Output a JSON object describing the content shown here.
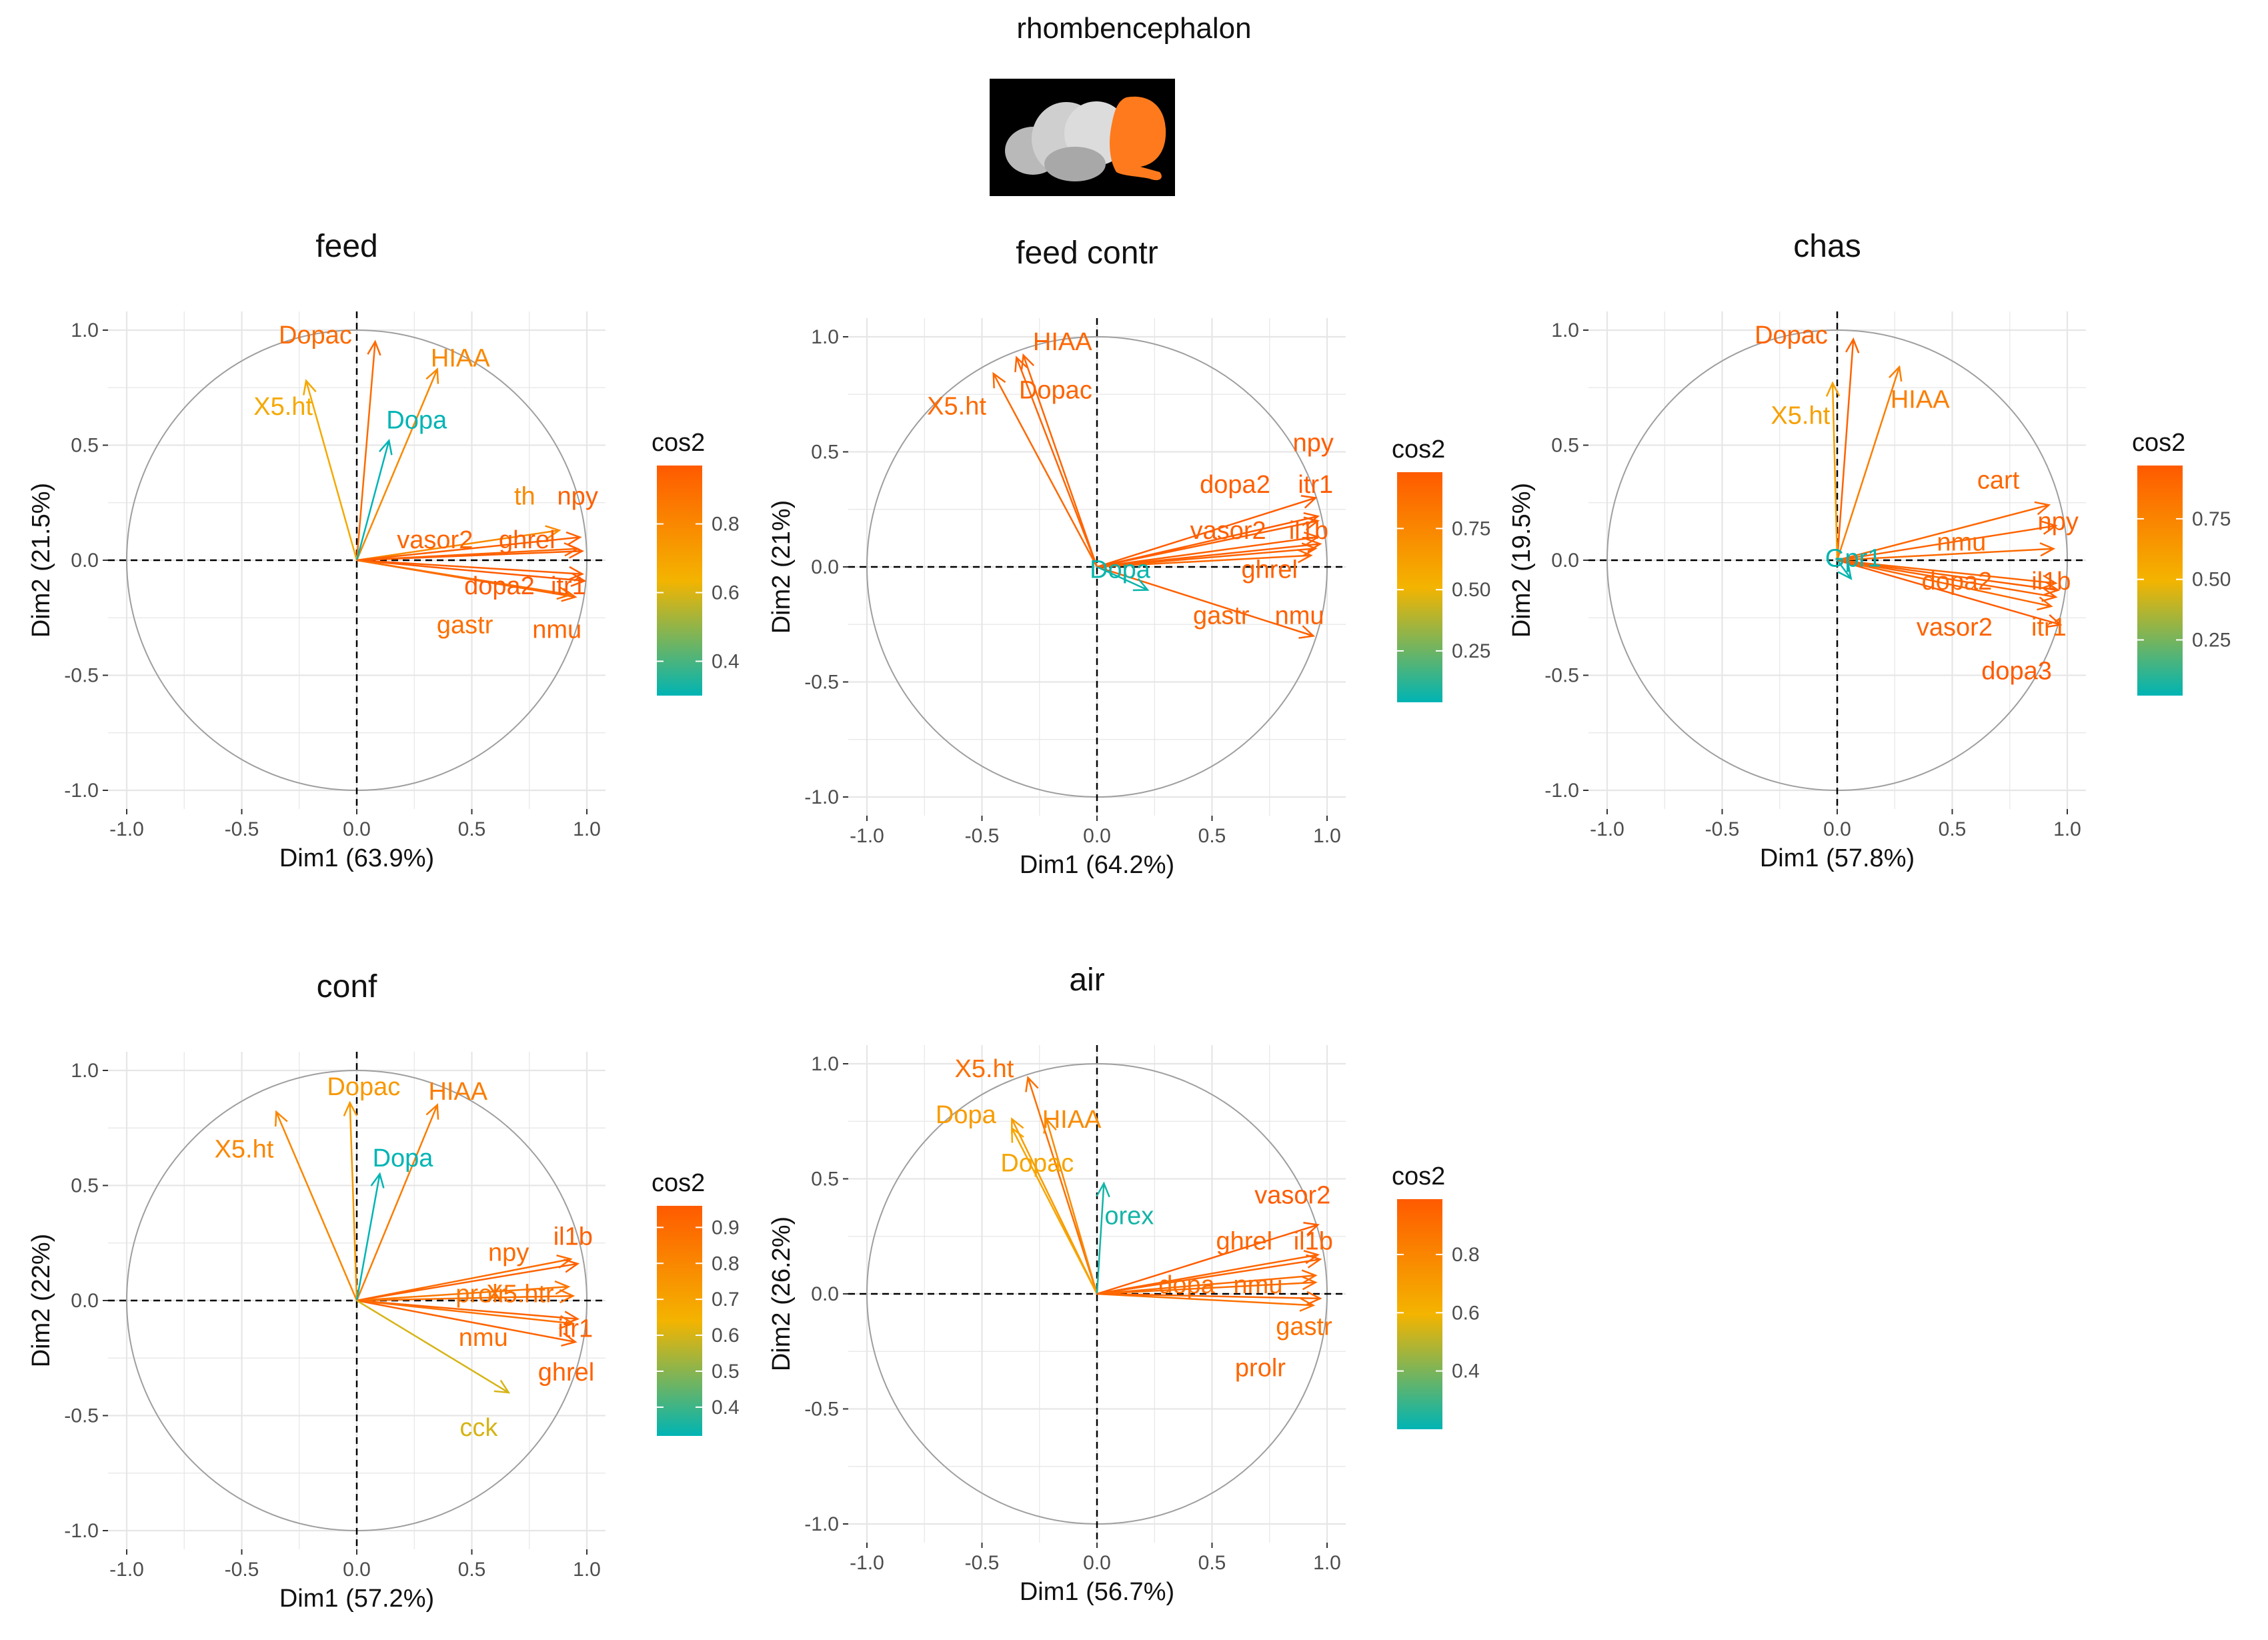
{
  "figure_title": "rhombencephalon",
  "colors": {
    "low": "#00b4b4",
    "mid": "#f4b400",
    "high": "#ff5a00",
    "circle": "#9e9e9e",
    "grid": "#e6e6e6",
    "highlight": "#ff7a1c"
  },
  "chart_data": [
    {
      "type": "scatter",
      "subtype": "pca-variable-correlation-circle",
      "title": "feed",
      "xlabel": "Dim1 (63.9%)",
      "ylabel": "Dim2 (21.5%)",
      "xlim": [
        -1.0,
        1.0
      ],
      "ylim": [
        -1.0,
        1.0
      ],
      "xticks": [
        "-1.0",
        "-0.5",
        "0.0",
        "0.5",
        "1.0"
      ],
      "yticks": [
        "-1.0",
        "-0.5",
        "0.0",
        "0.5",
        "1.0"
      ],
      "legend": {
        "title": "cos2",
        "range": [
          0.3,
          0.97
        ],
        "ticks": [
          "0.4",
          "0.6",
          "0.8"
        ],
        "tick_values": [
          0.4,
          0.6,
          0.8
        ],
        "placement": "right"
      },
      "variables": [
        {
          "name": "Dopac",
          "x": 0.08,
          "y": 0.95,
          "cos2": 0.91,
          "label_x": -0.18,
          "label_y": 0.98
        },
        {
          "name": "HIAA",
          "x": 0.35,
          "y": 0.83,
          "cos2": 0.8,
          "label_x": 0.45,
          "label_y": 0.88
        },
        {
          "name": "X5.ht",
          "x": -0.22,
          "y": 0.78,
          "cos2": 0.68,
          "label_x": -0.32,
          "label_y": 0.67
        },
        {
          "name": "Dopa",
          "x": 0.14,
          "y": 0.52,
          "cos2": 0.3,
          "label_x": 0.26,
          "label_y": 0.61
        },
        {
          "name": "th",
          "x": 0.88,
          "y": 0.13,
          "cos2": 0.79,
          "label_x": 0.73,
          "label_y": 0.28
        },
        {
          "name": "npy",
          "x": 0.97,
          "y": 0.1,
          "cos2": 0.95,
          "label_x": 0.96,
          "label_y": 0.28
        },
        {
          "name": "vasor2",
          "x": 0.96,
          "y": 0.05,
          "cos2": 0.93,
          "label_x": 0.34,
          "label_y": 0.09
        },
        {
          "name": "ghrel",
          "x": 0.98,
          "y": 0.04,
          "cos2": 0.96,
          "label_x": 0.74,
          "label_y": 0.09
        },
        {
          "name": "dopa2",
          "x": 0.98,
          "y": -0.06,
          "cos2": 0.96,
          "label_x": 0.62,
          "label_y": -0.11
        },
        {
          "name": "itr1",
          "x": 0.99,
          "y": -0.09,
          "cos2": 0.97,
          "label_x": 0.92,
          "label_y": -0.11
        },
        {
          "name": "nmu",
          "x": 0.95,
          "y": -0.16,
          "cos2": 0.93,
          "label_x": 0.87,
          "label_y": -0.3
        },
        {
          "name": "gastr",
          "x": 0.93,
          "y": -0.15,
          "cos2": 0.89,
          "label_x": 0.47,
          "label_y": -0.28
        }
      ]
    },
    {
      "type": "scatter",
      "subtype": "pca-variable-correlation-circle",
      "title": "feed contr",
      "xlabel": "Dim1 (64.2%)",
      "ylabel": "Dim2 (21%)",
      "xlim": [
        -1.0,
        1.0
      ],
      "ylim": [
        -1.0,
        1.0
      ],
      "xticks": [
        "-1.0",
        "-0.5",
        "0.0",
        "0.5",
        "1.0"
      ],
      "yticks": [
        "-1.0",
        "-0.5",
        "0.0",
        "0.5",
        "1.0"
      ],
      "legend": {
        "title": "cos2",
        "range": [
          0.04,
          0.98
        ],
        "ticks": [
          "0.25",
          "0.50",
          "0.75"
        ],
        "tick_values": [
          0.25,
          0.5,
          0.75
        ],
        "placement": "right"
      },
      "variables": [
        {
          "name": "HIAA",
          "x": -0.32,
          "y": 0.92,
          "cos2": 0.92,
          "label_x": -0.15,
          "label_y": 0.98
        },
        {
          "name": "Dopac",
          "x": -0.35,
          "y": 0.91,
          "cos2": 0.93,
          "label_x": -0.18,
          "label_y": 0.77
        },
        {
          "name": "X5.ht",
          "x": -0.45,
          "y": 0.84,
          "cos2": 0.9,
          "label_x": -0.61,
          "label_y": 0.7
        },
        {
          "name": "npy",
          "x": 0.95,
          "y": 0.3,
          "cos2": 0.97,
          "label_x": 0.94,
          "label_y": 0.54
        },
        {
          "name": "dopa2",
          "x": 0.96,
          "y": 0.2,
          "cos2": 0.96,
          "label_x": 0.6,
          "label_y": 0.36
        },
        {
          "name": "itr1",
          "x": 0.96,
          "y": 0.22,
          "cos2": 0.97,
          "label_x": 0.95,
          "label_y": 0.36
        },
        {
          "name": "vasor2",
          "x": 0.96,
          "y": 0.13,
          "cos2": 0.95,
          "label_x": 0.57,
          "label_y": 0.16
        },
        {
          "name": "il1b",
          "x": 0.97,
          "y": 0.1,
          "cos2": 0.96,
          "label_x": 0.92,
          "label_y": 0.16
        },
        {
          "name": "ghrel",
          "x": 0.95,
          "y": 0.08,
          "cos2": 0.94,
          "label_x": 0.75,
          "label_y": -0.01
        },
        {
          "name": "gastr",
          "x": 0.93,
          "y": 0.05,
          "cos2": 0.92,
          "label_x": 0.54,
          "label_y": -0.21
        },
        {
          "name": "nmu",
          "x": 0.94,
          "y": -0.3,
          "cos2": 0.95,
          "label_x": 0.88,
          "label_y": -0.21
        },
        {
          "name": "Dopa",
          "x": 0.22,
          "y": -0.1,
          "cos2": 0.06,
          "label_x": 0.1,
          "label_y": -0.01
        }
      ]
    },
    {
      "type": "scatter",
      "subtype": "pca-variable-correlation-circle",
      "title": "chas",
      "xlabel": "Dim1 (57.8%)",
      "ylabel": "Dim2 (19.5%)",
      "xlim": [
        -1.0,
        1.0
      ],
      "ylim": [
        -1.0,
        1.0
      ],
      "xticks": [
        "-1.0",
        "-0.5",
        "0.0",
        "0.5",
        "1.0"
      ],
      "yticks": [
        "-1.0",
        "-0.5",
        "0.0",
        "0.5",
        "1.0"
      ],
      "legend": {
        "title": "cos2",
        "range": [
          0.02,
          0.97
        ],
        "ticks": [
          "0.25",
          "0.50",
          "0.75"
        ],
        "tick_values": [
          0.25,
          0.5,
          0.75
        ],
        "placement": "right"
      },
      "variables": [
        {
          "name": "Dopac",
          "x": 0.07,
          "y": 0.96,
          "cos2": 0.93,
          "label_x": -0.2,
          "label_y": 0.98
        },
        {
          "name": "X5.ht",
          "x": -0.02,
          "y": 0.77,
          "cos2": 0.6,
          "label_x": -0.16,
          "label_y": 0.63
        },
        {
          "name": "HIAA",
          "x": 0.27,
          "y": 0.84,
          "cos2": 0.78,
          "label_x": 0.36,
          "label_y": 0.7
        },
        {
          "name": "cart",
          "x": 0.92,
          "y": 0.24,
          "cos2": 0.9,
          "label_x": 0.7,
          "label_y": 0.35
        },
        {
          "name": "npy",
          "x": 0.95,
          "y": 0.15,
          "cos2": 0.93,
          "label_x": 0.96,
          "label_y": 0.17
        },
        {
          "name": "nmu",
          "x": 0.94,
          "y": 0.05,
          "cos2": 0.89,
          "label_x": 0.54,
          "label_y": 0.08
        },
        {
          "name": "dopa2",
          "x": 0.95,
          "y": -0.1,
          "cos2": 0.91,
          "label_x": 0.52,
          "label_y": -0.09
        },
        {
          "name": "il1b",
          "x": 0.96,
          "y": -0.13,
          "cos2": 0.94,
          "label_x": 0.93,
          "label_y": -0.09
        },
        {
          "name": "vasor2",
          "x": 0.95,
          "y": -0.16,
          "cos2": 0.93,
          "label_x": 0.51,
          "label_y": -0.29
        },
        {
          "name": "itr1",
          "x": 0.93,
          "y": -0.2,
          "cos2": 0.9,
          "label_x": 0.92,
          "label_y": -0.29
        },
        {
          "name": "dopa3",
          "x": 0.97,
          "y": -0.28,
          "cos2": 0.97,
          "label_x": 0.78,
          "label_y": -0.48
        },
        {
          "name": "Gpr1",
          "x": 0.06,
          "y": -0.08,
          "cos2": 0.03,
          "label_x": 0.07,
          "label_y": 0.01
        }
      ]
    },
    {
      "type": "scatter",
      "subtype": "pca-variable-correlation-circle",
      "title": "conf",
      "xlabel": "Dim1 (57.2%)",
      "ylabel": "Dim2 (22%)",
      "xlim": [
        -1.0,
        1.0
      ],
      "ylim": [
        -1.0,
        1.0
      ],
      "xticks": [
        "-1.0",
        "-0.5",
        "0.0",
        "0.5",
        "1.0"
      ],
      "yticks": [
        "-1.0",
        "-0.5",
        "0.0",
        "0.5",
        "1.0"
      ],
      "legend": {
        "title": "cos2",
        "range": [
          0.32,
          0.96
        ],
        "ticks": [
          "0.4",
          "0.5",
          "0.6",
          "0.7",
          "0.8",
          "0.9"
        ],
        "tick_values": [
          0.4,
          0.5,
          0.6,
          0.7,
          0.8,
          0.9
        ],
        "placement": "right"
      },
      "variables": [
        {
          "name": "Dopac",
          "x": -0.03,
          "y": 0.86,
          "cos2": 0.74,
          "label_x": 0.03,
          "label_y": 0.93
        },
        {
          "name": "HIAA",
          "x": 0.35,
          "y": 0.85,
          "cos2": 0.84,
          "label_x": 0.44,
          "label_y": 0.91
        },
        {
          "name": "X5.ht",
          "x": -0.35,
          "y": 0.82,
          "cos2": 0.8,
          "label_x": -0.49,
          "label_y": 0.66
        },
        {
          "name": "Dopa",
          "x": 0.1,
          "y": 0.55,
          "cos2": 0.32,
          "label_x": 0.2,
          "label_y": 0.62
        },
        {
          "name": "npy",
          "x": 0.93,
          "y": 0.18,
          "cos2": 0.9,
          "label_x": 0.66,
          "label_y": 0.21
        },
        {
          "name": "il1b",
          "x": 0.96,
          "y": 0.16,
          "cos2": 0.94,
          "label_x": 0.94,
          "label_y": 0.28
        },
        {
          "name": "prolr",
          "x": 0.92,
          "y": 0.06,
          "cos2": 0.86,
          "label_x": 0.54,
          "label_y": 0.03
        },
        {
          "name": "X5.htr",
          "x": 0.94,
          "y": 0.02,
          "cos2": 0.88,
          "label_x": 0.71,
          "label_y": 0.03
        },
        {
          "name": "itr1",
          "x": 0.96,
          "y": -0.08,
          "cos2": 0.93,
          "label_x": 0.95,
          "label_y": -0.12
        },
        {
          "name": "nmu",
          "x": 0.94,
          "y": -0.1,
          "cos2": 0.89,
          "label_x": 0.55,
          "label_y": -0.16
        },
        {
          "name": "ghrel",
          "x": 0.95,
          "y": -0.18,
          "cos2": 0.93,
          "label_x": 0.91,
          "label_y": -0.31
        },
        {
          "name": "cck",
          "x": 0.66,
          "y": -0.4,
          "cos2": 0.6,
          "label_x": 0.53,
          "label_y": -0.55
        }
      ]
    },
    {
      "type": "scatter",
      "subtype": "pca-variable-correlation-circle",
      "title": "air",
      "xlabel": "Dim1 (56.7%)",
      "ylabel": "Dim2 (26.2%)",
      "xlim": [
        -1.0,
        1.0
      ],
      "ylim": [
        -1.0,
        1.0
      ],
      "xticks": [
        "-1.0",
        "-0.5",
        "0.0",
        "0.5",
        "1.0"
      ],
      "yticks": [
        "-1.0",
        "-0.5",
        "0.0",
        "0.5",
        "1.0"
      ],
      "legend": {
        "title": "cos2",
        "range": [
          0.2,
          0.99
        ],
        "ticks": [
          "0.4",
          "0.6",
          "0.8"
        ],
        "tick_values": [
          0.4,
          0.6,
          0.8
        ],
        "placement": "right"
      },
      "variables": [
        {
          "name": "X5.ht",
          "x": -0.3,
          "y": 0.94,
          "cos2": 0.9,
          "label_x": -0.49,
          "label_y": 0.98
        },
        {
          "name": "Dopa",
          "x": -0.37,
          "y": 0.76,
          "cos2": 0.7,
          "label_x": -0.57,
          "label_y": 0.78
        },
        {
          "name": "HIAA",
          "x": -0.22,
          "y": 0.76,
          "cos2": 0.78,
          "label_x": -0.11,
          "label_y": 0.76
        },
        {
          "name": "Dopac",
          "x": -0.37,
          "y": 0.72,
          "cos2": 0.66,
          "label_x": -0.26,
          "label_y": 0.57
        },
        {
          "name": "orex",
          "x": 0.03,
          "y": 0.48,
          "cos2": 0.23,
          "label_x": 0.14,
          "label_y": 0.34
        },
        {
          "name": "vasor2",
          "x": 0.96,
          "y": 0.3,
          "cos2": 0.98,
          "label_x": 0.85,
          "label_y": 0.43
        },
        {
          "name": "ghrel",
          "x": 0.96,
          "y": 0.17,
          "cos2": 0.94,
          "label_x": 0.64,
          "label_y": 0.23
        },
        {
          "name": "il1b",
          "x": 0.97,
          "y": 0.15,
          "cos2": 0.95,
          "label_x": 0.94,
          "label_y": 0.23
        },
        {
          "name": "dopa",
          "x": 0.95,
          "y": 0.05,
          "cos2": 0.91,
          "label_x": 0.39,
          "label_y": 0.04
        },
        {
          "name": "nmu",
          "x": 0.95,
          "y": 0.08,
          "cos2": 0.92,
          "label_x": 0.7,
          "label_y": 0.04
        },
        {
          "name": "gastr",
          "x": 0.94,
          "y": -0.05,
          "cos2": 0.89,
          "label_x": 0.9,
          "label_y": -0.14
        },
        {
          "name": "prolr",
          "x": 0.97,
          "y": -0.02,
          "cos2": 0.94,
          "label_x": 0.71,
          "label_y": -0.32
        }
      ]
    }
  ]
}
